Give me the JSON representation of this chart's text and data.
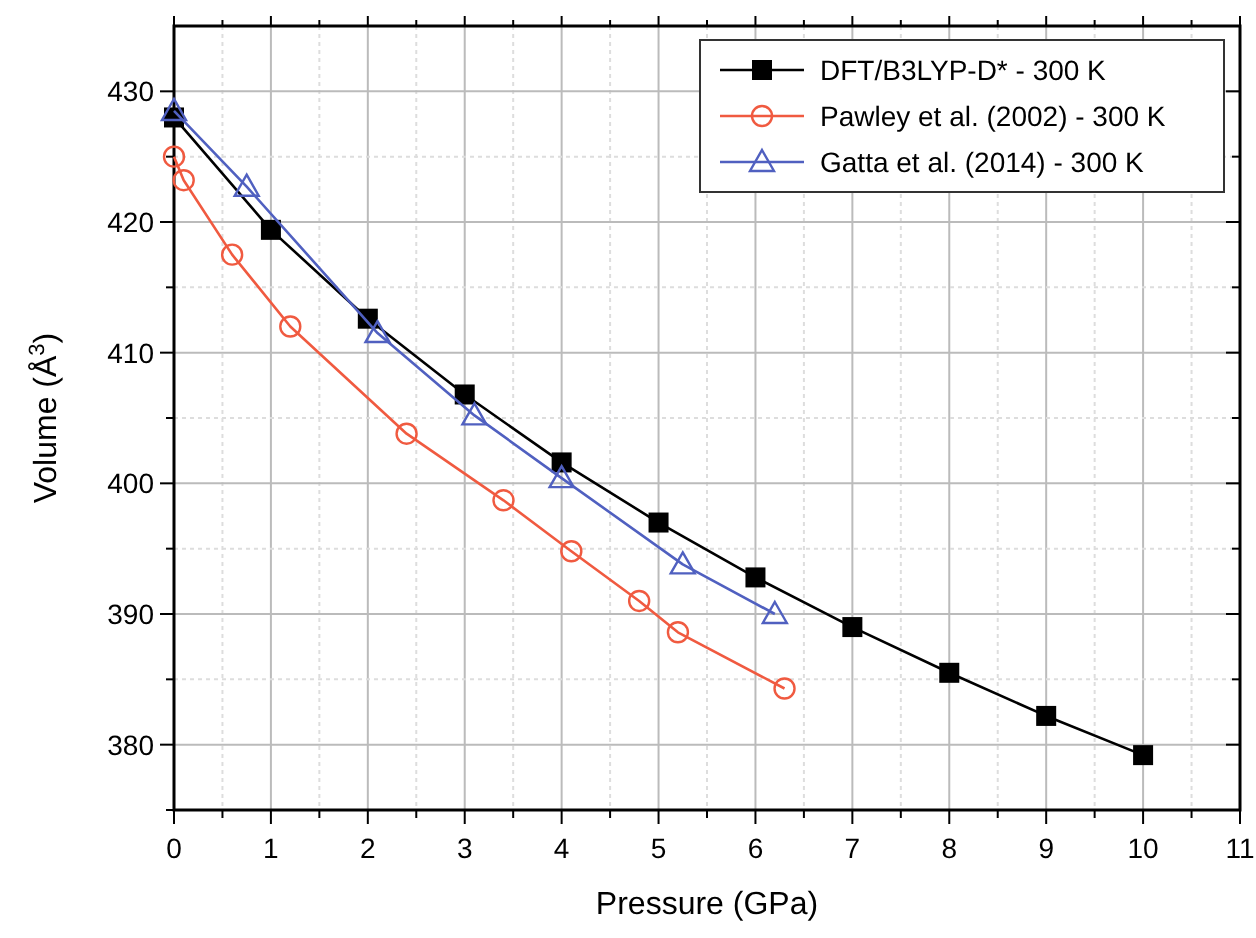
{
  "chart_data": {
    "type": "line",
    "xlabel": "Pressure (GPa)",
    "ylabel": "Volume (Å$^{3}$)",
    "xlim": [
      0,
      11
    ],
    "ylim": [
      375,
      435
    ],
    "xticks": [
      0,
      {
        "value": 0.5,
        "label": null
      },
      1,
      {
        "value": 1.5,
        "label": null
      },
      2,
      {
        "value": 2.5,
        "label": null
      },
      3,
      {
        "value": 3.5,
        "label": null
      },
      4,
      {
        "value": 4.5,
        "label": null
      },
      5,
      {
        "value": 5.5,
        "label": null
      },
      6,
      {
        "value": 6.5,
        "label": null
      },
      7,
      {
        "value": 7.5,
        "label": null
      },
      8,
      {
        "value": 8.5,
        "label": null
      },
      9,
      {
        "value": 9.5,
        "label": null
      },
      10,
      {
        "value": 10.5,
        "label": null
      },
      11
    ],
    "yticks": [
      {
        "value": 375,
        "label": null
      },
      380,
      {
        "value": 385,
        "label": null
      },
      390,
      {
        "value": 395,
        "label": null
      },
      400,
      {
        "value": 405,
        "label": null
      },
      410,
      {
        "value": 415,
        "label": null
      },
      420,
      {
        "value": 425,
        "label": null
      },
      430
    ],
    "grid": true,
    "legend": "top right",
    "line_style": "solid",
    "series": [
      {
        "name": "DFT/B3LYP-D* - 300 K",
        "color": "#000000",
        "marker": "square",
        "x": [
          0,
          1,
          2,
          3,
          4,
          5,
          6,
          7,
          8,
          9,
          10
        ],
        "values": [
          428,
          419.4,
          412.6,
          406.8,
          401.6,
          397.0,
          392.8,
          389.0,
          385.5,
          382.2,
          379.2
        ]
      },
      {
        "name": "Pawley et al. (2002) - 300 K",
        "color": "#f05a40",
        "marker": "circle",
        "x": [
          0,
          0.1,
          0.6,
          1.2,
          2.4,
          3.4,
          4.1,
          4.8,
          5.2,
          6.3
        ],
        "values": [
          425,
          423.2,
          417.5,
          412.0,
          403.8,
          398.7,
          394.8,
          391.0,
          388.6,
          384.3
        ]
      },
      {
        "name": "Gatta et al. (2014) - 300 K",
        "color": "#5060c0",
        "marker": "triangle",
        "x": [
          0,
          0.75,
          2.1,
          3.1,
          4.0,
          5.25,
          6.2
        ],
        "values": [
          428.5,
          422.7,
          411.5,
          405.2,
          400.4,
          393.8,
          390.0
        ]
      }
    ]
  }
}
